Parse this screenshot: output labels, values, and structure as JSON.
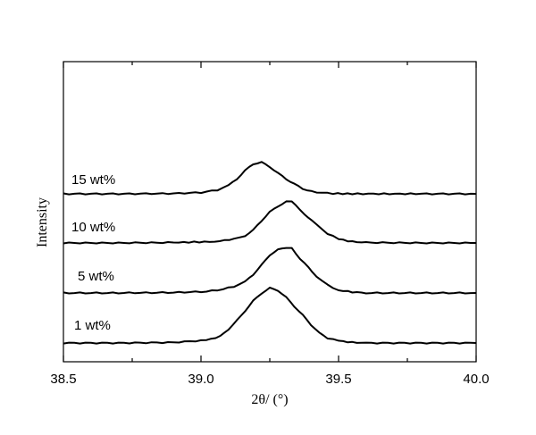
{
  "chart_data": {
    "type": "line",
    "xlabel": "2θ/ (°)",
    "ylabel": "Intensity",
    "xlim": [
      38.5,
      40.0
    ],
    "x_ticks": [
      "38.5",
      "39.0",
      "39.5",
      "40.0"
    ],
    "y_ticks_labeled": false,
    "grid": false,
    "legend": "none",
    "series": [
      {
        "name": "1 wt%",
        "x": [
          38.5,
          38.7,
          38.9,
          39.02,
          39.07,
          39.1,
          39.13,
          39.16,
          39.19,
          39.22,
          39.25,
          39.28,
          39.31,
          39.34,
          39.37,
          39.4,
          39.43,
          39.46,
          39.5,
          39.55,
          39.6,
          39.8,
          40.0
        ],
        "y": [
          0.0,
          0.0,
          0.01,
          0.05,
          0.12,
          0.25,
          0.4,
          0.58,
          0.76,
          0.9,
          0.99,
          0.95,
          0.82,
          0.66,
          0.5,
          0.33,
          0.18,
          0.09,
          0.04,
          0.01,
          0.0,
          0.0,
          0.0
        ]
      },
      {
        "name": "5 wt%",
        "x": [
          38.5,
          38.7,
          38.9,
          39.02,
          39.08,
          39.12,
          39.16,
          39.19,
          39.22,
          39.25,
          39.28,
          39.31,
          39.33,
          39.36,
          39.39,
          39.42,
          39.46,
          39.5,
          39.55,
          39.6,
          39.8,
          40.0
        ],
        "y": [
          0.0,
          0.0,
          0.01,
          0.03,
          0.08,
          0.14,
          0.24,
          0.4,
          0.6,
          0.82,
          0.93,
          0.98,
          0.96,
          0.74,
          0.55,
          0.36,
          0.17,
          0.06,
          0.02,
          0.0,
          0.0,
          0.0
        ]
      },
      {
        "name": "10 wt%",
        "x": [
          38.5,
          38.7,
          38.9,
          39.05,
          39.12,
          39.16,
          39.19,
          39.22,
          39.25,
          39.28,
          39.31,
          39.33,
          39.36,
          39.39,
          39.42,
          39.46,
          39.5,
          39.55,
          39.6,
          39.8,
          40.0
        ],
        "y": [
          0.0,
          0.0,
          0.01,
          0.03,
          0.09,
          0.17,
          0.3,
          0.52,
          0.72,
          0.86,
          0.96,
          0.98,
          0.76,
          0.6,
          0.42,
          0.22,
          0.09,
          0.03,
          0.01,
          0.0,
          0.0
        ]
      },
      {
        "name": "15 wt%",
        "x": [
          38.5,
          38.7,
          38.9,
          39.0,
          39.06,
          39.1,
          39.13,
          39.16,
          39.19,
          39.22,
          39.25,
          39.28,
          39.31,
          39.34,
          39.37,
          39.4,
          39.44,
          39.48,
          39.55,
          39.8,
          40.0
        ],
        "y": [
          0.0,
          0.0,
          0.01,
          0.04,
          0.12,
          0.26,
          0.46,
          0.72,
          0.93,
          0.98,
          0.84,
          0.64,
          0.46,
          0.3,
          0.16,
          0.08,
          0.03,
          0.01,
          0.0,
          0.0,
          0.0
        ]
      }
    ]
  }
}
